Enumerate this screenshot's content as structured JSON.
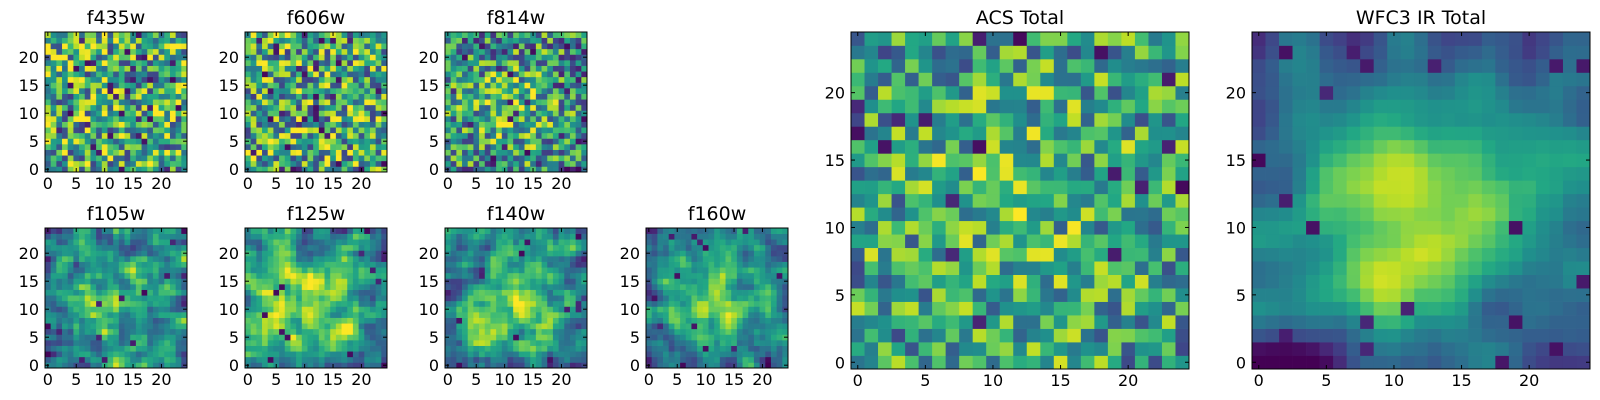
{
  "chart_data": [
    {
      "id": "f435w",
      "type": "heatmap",
      "title": "f435w",
      "grid_size": 25,
      "colormap": "viridis",
      "xticks": [
        0,
        5,
        10,
        15,
        20
      ],
      "yticks": [
        0,
        5,
        10,
        15,
        20
      ],
      "xlim": [
        0,
        25
      ],
      "ylim": [
        0,
        25
      ]
    },
    {
      "id": "f606w",
      "type": "heatmap",
      "title": "f606w",
      "grid_size": 25,
      "colormap": "viridis",
      "xticks": [
        0,
        5,
        10,
        15,
        20
      ],
      "yticks": [
        0,
        5,
        10,
        15,
        20
      ],
      "xlim": [
        0,
        25
      ],
      "ylim": [
        0,
        25
      ]
    },
    {
      "id": "f814w",
      "type": "heatmap",
      "title": "f814w",
      "grid_size": 25,
      "colormap": "viridis",
      "xticks": [
        0,
        5,
        10,
        15,
        20
      ],
      "yticks": [
        0,
        5,
        10,
        15,
        20
      ],
      "xlim": [
        0,
        25
      ],
      "ylim": [
        0,
        25
      ]
    },
    {
      "id": "f105w",
      "type": "heatmap",
      "title": "f105w",
      "grid_size": 25,
      "colormap": "viridis",
      "xticks": [
        0,
        5,
        10,
        15,
        20
      ],
      "yticks": [
        0,
        5,
        10,
        15,
        20
      ],
      "xlim": [
        0,
        25
      ],
      "ylim": [
        0,
        25
      ]
    },
    {
      "id": "f125w",
      "type": "heatmap",
      "title": "f125w",
      "grid_size": 25,
      "colormap": "viridis",
      "xticks": [
        0,
        5,
        10,
        15,
        20
      ],
      "yticks": [
        0,
        5,
        10,
        15,
        20
      ],
      "xlim": [
        0,
        25
      ],
      "ylim": [
        0,
        25
      ]
    },
    {
      "id": "f140w",
      "type": "heatmap",
      "title": "f140w",
      "grid_size": 25,
      "colormap": "viridis",
      "xticks": [
        0,
        5,
        10,
        15,
        20
      ],
      "yticks": [
        0,
        5,
        10,
        15,
        20
      ],
      "xlim": [
        0,
        25
      ],
      "ylim": [
        0,
        25
      ]
    },
    {
      "id": "f160w",
      "type": "heatmap",
      "title": "f160w",
      "grid_size": 25,
      "colormap": "viridis",
      "xticks": [
        0,
        5,
        10,
        15,
        20
      ],
      "yticks": [
        0,
        5,
        10,
        15,
        20
      ],
      "xlim": [
        0,
        25
      ],
      "ylim": [
        0,
        25
      ]
    },
    {
      "id": "acs-total",
      "type": "heatmap",
      "title": "ACS Total",
      "grid_size": 25,
      "colormap": "viridis",
      "xticks": [
        0,
        5,
        10,
        15,
        20
      ],
      "yticks": [
        0,
        5,
        10,
        15,
        20
      ],
      "xlim": [
        0,
        25
      ],
      "ylim": [
        0,
        25
      ]
    },
    {
      "id": "wfc3-ir-total",
      "type": "heatmap",
      "title": "WFC3 IR Total",
      "grid_size": 25,
      "colormap": "viridis",
      "xticks": [
        0,
        5,
        10,
        15,
        20
      ],
      "yticks": [
        0,
        5,
        10,
        15,
        20
      ],
      "xlim": [
        0,
        25
      ],
      "ylim": [
        0,
        25
      ]
    }
  ]
}
